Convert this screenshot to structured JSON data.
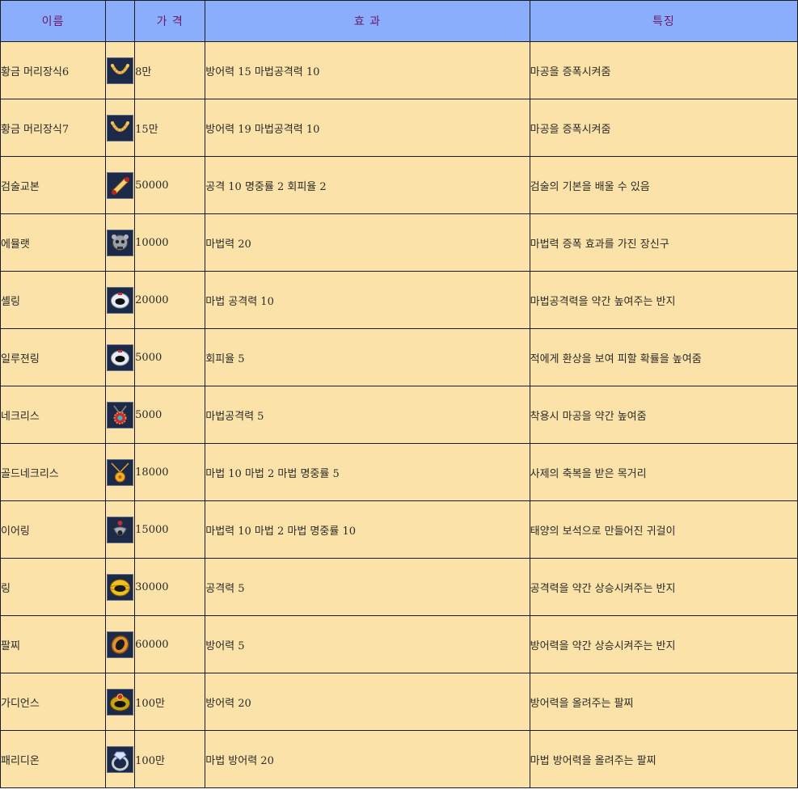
{
  "header": {
    "name": "이름",
    "icon": "",
    "price": "가 격",
    "effect": "효 과",
    "feature": "특징"
  },
  "rows": [
    {
      "name": "황금 머리장식6",
      "price": "8만",
      "effect": "방어력 15 마법공격력 10",
      "feature": "마공을 증폭시켜줌",
      "icon": "gold-circlet-icon"
    },
    {
      "name": "황금 머리장식7",
      "price": "15만",
      "effect": "방어력 19 마법공격력 10",
      "feature": "마공을 증폭시켜줌",
      "icon": "gold-circlet-icon"
    },
    {
      "name": "검술교본",
      "price": "50000",
      "effect": "공격 10 명중률 2 회피율 2",
      "feature": "검술의 기본을 배울 수 있음",
      "icon": "scroll-icon"
    },
    {
      "name": "에뮬랫",
      "price": "10000",
      "effect": "마법력 20",
      "feature": "마법력 증폭 효과를 가진 장신구",
      "icon": "skull-amulet-icon"
    },
    {
      "name": "셸링",
      "price": "20000",
      "effect": "마법 공격력 10",
      "feature": "마법공격력을 약간 높여주는 반지",
      "icon": "silver-ring-icon"
    },
    {
      "name": "일루젼링",
      "price": "5000",
      "effect": "회피율 5",
      "feature": "적에게 환상을 보여 피할 확률을 높여줌",
      "icon": "silver-ring-icon"
    },
    {
      "name": "네크리스",
      "price": "5000",
      "effect": "마법공격력 5",
      "feature": "착용시 마공을 약간 높여줌",
      "icon": "red-necklace-icon"
    },
    {
      "name": "골드네크리스",
      "price": "18000",
      "effect": "마법 10 마법 2 마법 명중률 5",
      "feature": "사제의 축복을 받은 목거리",
      "icon": "gold-necklace-icon"
    },
    {
      "name": "이어링",
      "price": "15000",
      "effect": "마법력 10 마법 2 마법 명중률 10",
      "feature": "태양의 보석으로 만들어진 귀걸이",
      "icon": "earring-icon"
    },
    {
      "name": "링",
      "price": "30000",
      "effect": "공격력 5",
      "feature": "공격력을 약간 상승시켜주는 반지",
      "icon": "gold-ring-icon"
    },
    {
      "name": "팔찌",
      "price": "60000",
      "effect": "방어력 5",
      "feature": "방어력을 약간 상승시켜주는 반지",
      "icon": "bracelet-icon"
    },
    {
      "name": "가디언스",
      "price": "100만",
      "effect": "방어력 20",
      "feature": "방어력을 올려주는 팔찌",
      "icon": "guardian-ring-icon"
    },
    {
      "name": "패리디온",
      "price": "100만",
      "effect": "마법 방어력 20",
      "feature": "마법 방어력을 올려주는 팔찌",
      "icon": "diamond-ring-icon"
    }
  ]
}
